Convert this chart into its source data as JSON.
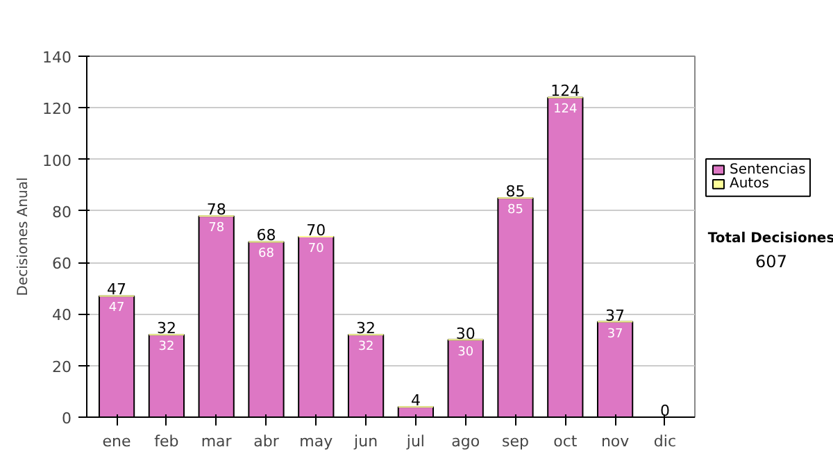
{
  "chart_data": {
    "type": "bar",
    "stacked": true,
    "ylabel": "Decisiones Anual",
    "categories": [
      "ene",
      "feb",
      "mar",
      "abr",
      "may",
      "jun",
      "jul",
      "ago",
      "sep",
      "oct",
      "nov",
      "dic"
    ],
    "series": [
      {
        "name": "Sentencias",
        "color": "#dd77c4",
        "values": [
          47,
          32,
          78,
          68,
          70,
          32,
          4,
          30,
          85,
          124,
          37,
          0
        ],
        "value_labels": [
          "47",
          "32",
          "78",
          "68",
          "70",
          "32",
          null,
          "30",
          "85",
          "124",
          "37",
          null
        ]
      },
      {
        "name": "Autos",
        "color": "#ffff99",
        "values": [
          0,
          0,
          0,
          0,
          0,
          0,
          0,
          0,
          0,
          0,
          0,
          0
        ]
      }
    ],
    "totals": [
      "47",
      "32",
      "78",
      "68",
      "70",
      "32",
      "4",
      "30",
      "85",
      "124",
      "37",
      "0"
    ],
    "ylim": [
      0,
      140
    ],
    "yticks": [
      0,
      20,
      40,
      60,
      80,
      100,
      120,
      140
    ],
    "grid": "y",
    "legend": "right",
    "annotations": [
      "Total Decisiones",
      "607"
    ]
  }
}
